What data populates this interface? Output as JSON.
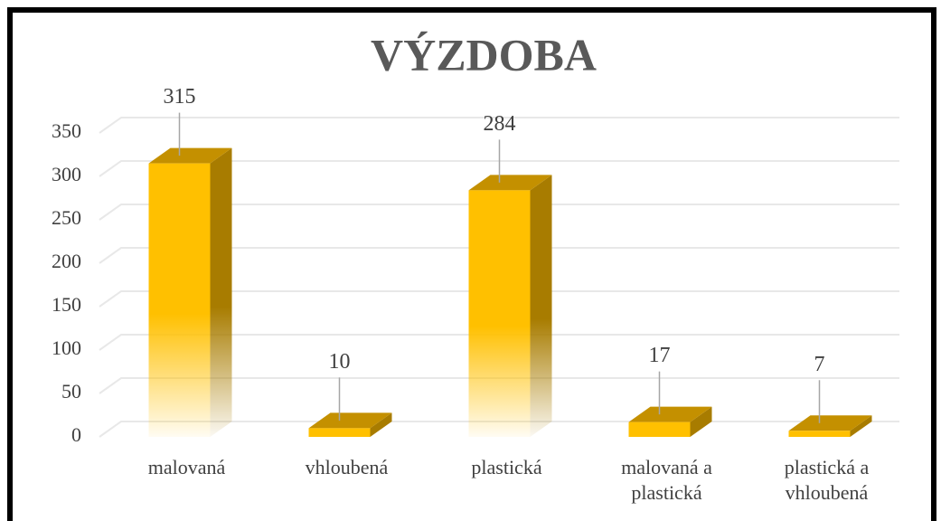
{
  "chart_data": {
    "type": "bar",
    "title": "VÝZDOBA",
    "categories": [
      "malovaná",
      "vhloubená",
      "plastická",
      "malovaná a plastická",
      "plastická a vhloubená"
    ],
    "values": [
      315,
      10,
      284,
      17,
      7
    ],
    "color": "#FFC000",
    "ylim": [
      0,
      350
    ],
    "yticks": [
      0,
      50,
      100,
      150,
      200,
      250,
      300,
      350
    ],
    "grid": true
  }
}
